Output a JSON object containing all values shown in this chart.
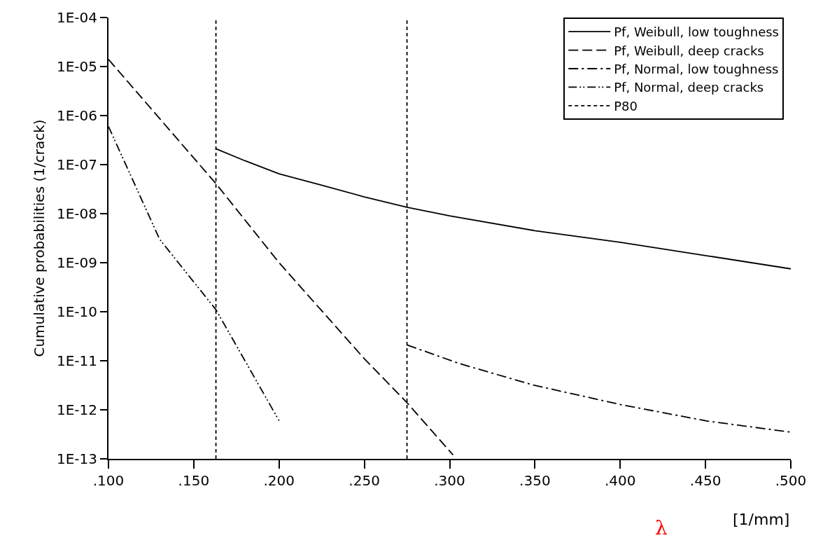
{
  "chart_data": {
    "type": "line",
    "xlabel": "[1/mm]",
    "ylabel": "Cumulative probabilities (1/crack)",
    "annotations": [
      "λ"
    ],
    "log": "y",
    "legend": "top right",
    "marker": "none",
    "xlim": [
      0.1,
      0.5
    ],
    "xticks": [
      {
        "value": 0.1,
        "label": ".100"
      },
      {
        "value": 0.15,
        "label": ".150"
      },
      {
        "value": 0.2,
        "label": ".200"
      },
      {
        "value": 0.25,
        "label": ".250"
      },
      {
        "value": 0.3,
        "label": ".300"
      },
      {
        "value": 0.35,
        "label": ".350"
      },
      {
        "value": 0.4,
        "label": ".400"
      },
      {
        "value": 0.45,
        "label": ".450"
      },
      {
        "value": 0.5,
        "label": ".500"
      }
    ],
    "ylim": [
      1e-13,
      0.0001
    ],
    "yticks": [
      {
        "value": 1e-13,
        "label": "1E-13"
      },
      {
        "value": 1e-12,
        "label": "1E-12"
      },
      {
        "value": 1e-11,
        "label": "1E-11"
      },
      {
        "value": 1e-10,
        "label": "1E-10"
      },
      {
        "value": 1e-09,
        "label": "1E-09"
      },
      {
        "value": 1e-08,
        "label": "1E-08"
      },
      {
        "value": 1e-07,
        "label": "1E-07"
      },
      {
        "value": 1e-06,
        "label": "1E-06"
      },
      {
        "value": 1e-05,
        "label": "1E-05"
      },
      {
        "value": 0.0001,
        "label": "1E-04"
      }
    ],
    "series": [
      {
        "name": "Pf, Weibull, low toughness",
        "color": "#000000",
        "line_style": "solid",
        "x": [
          0.163,
          0.18,
          0.2,
          0.225,
          0.25,
          0.275,
          0.3,
          0.35,
          0.4,
          0.45,
          0.5
        ],
        "values": [
          2.1e-07,
          1.2e-07,
          6.5e-08,
          3.8e-08,
          2.2e-08,
          1.35e-08,
          9e-09,
          4.5e-09,
          2.6e-09,
          1.4e-09,
          7.5e-10
        ]
      },
      {
        "name": "Pf, Weibull, deep cracks",
        "color": "#000000",
        "line_style": "longdash",
        "x": [
          0.1,
          0.163,
          0.2,
          0.25,
          0.275,
          0.302
        ],
        "values": [
          1.4e-05,
          4.1e-08,
          1e-09,
          1.1e-11,
          1.4e-12,
          1.2e-13
        ]
      },
      {
        "name": "Pf, Normal, low toughness",
        "color": "#000000",
        "line_style": "dashdot",
        "x": [
          0.275,
          0.306,
          0.349,
          0.401,
          0.451,
          0.5
        ],
        "values": [
          2.1e-11,
          8.7e-12,
          3.2e-12,
          1.26e-12,
          5.9e-13,
          3.5e-13
        ]
      },
      {
        "name": "Pf, Normal, deep cracks",
        "color": "#000000",
        "line_style": "dashdotdot",
        "x": [
          0.1,
          0.13,
          0.163,
          0.2
        ],
        "values": [
          6e-07,
          3e-09,
          1.1e-10,
          6e-13
        ]
      },
      {
        "name": "P80",
        "color": "#000000",
        "line_style": "dashed",
        "x": [
          0.163,
          0.163,
          null,
          0.275,
          0.275
        ],
        "values": [
          1e-13,
          0.0001,
          null,
          1e-13,
          0.0001
        ]
      }
    ]
  }
}
